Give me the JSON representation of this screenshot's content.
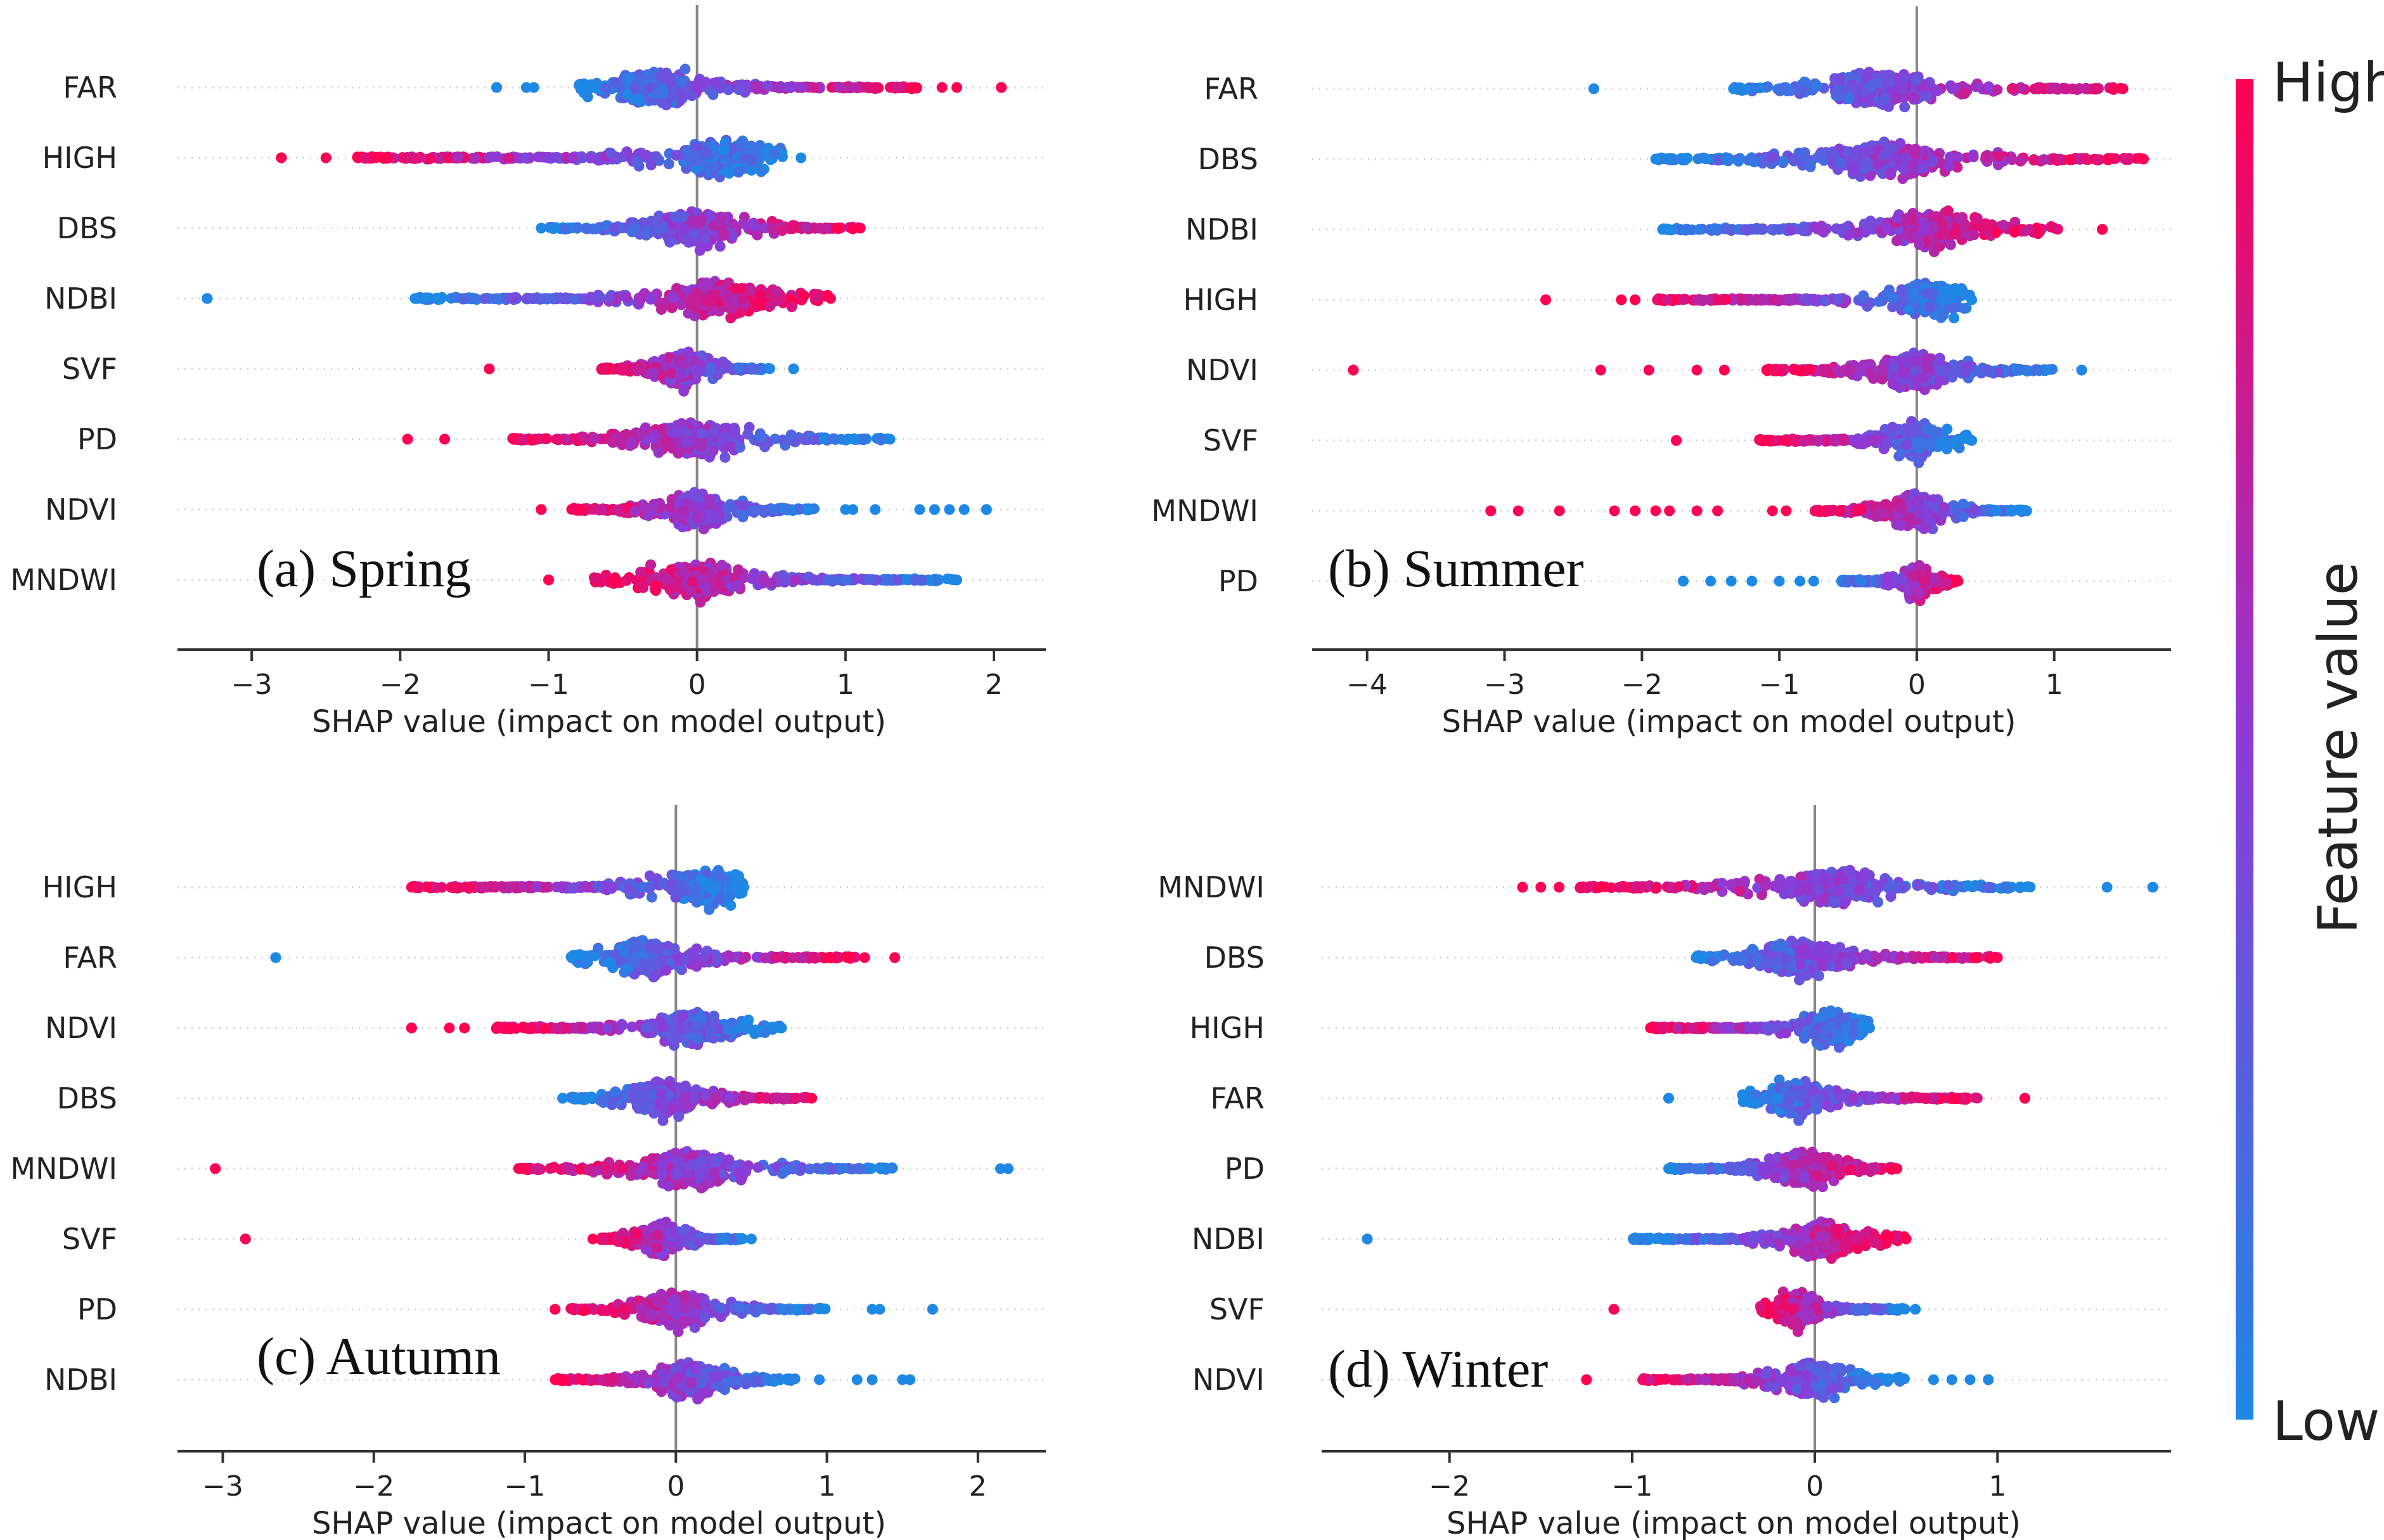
{
  "figure": {
    "colorbar": {
      "high_label": "High",
      "low_label": "Low",
      "title": "Feature value",
      "colors": {
        "high": "#ff0052",
        "mid": "#8c3bd9",
        "low": "#1e88e5"
      }
    }
  },
  "chart_data": [
    {
      "type": "scatter",
      "subtype": "shap-beeswarm",
      "panel_label": "(a) Spring",
      "xlabel": "SHAP value (impact on model output)",
      "xticks": [
        -3,
        -2,
        -1,
        0,
        1,
        2
      ],
      "xtick_labels": [
        "−3",
        "−2",
        "−1",
        "0",
        "1",
        "2"
      ],
      "xlim": [
        -3.5,
        2.35
      ],
      "features": [
        {
          "name": "FAR",
          "min": -1.35,
          "max": 2.05,
          "body": [
            -0.8,
            1.5
          ],
          "center": -0.3,
          "low_side": "left",
          "outliers_low": [
            -1.35,
            -1.15,
            -1.1
          ],
          "outliers_high": [
            1.65,
            1.75,
            2.05
          ]
        },
        {
          "name": "HIGH",
          "min": -2.8,
          "max": 0.7,
          "body": [
            -2.3,
            0.6
          ],
          "center": 0.2,
          "low_side": "right",
          "outliers_low": [
            -2.8,
            -2.5
          ],
          "outliers_high": []
        },
        {
          "name": "DBS",
          "min": -1.05,
          "max": 1.1,
          "body": [
            -1.0,
            1.1
          ],
          "center": 0.0,
          "low_side": "left",
          "outliers_low": [],
          "outliers_high": []
        },
        {
          "name": "NDBI",
          "min": -3.3,
          "max": 0.9,
          "body": [
            -1.9,
            0.9
          ],
          "center": 0.15,
          "low_side": "left",
          "outliers_low": [
            -3.3,
            -1.9
          ],
          "outliers_high": []
        },
        {
          "name": "SVF",
          "min": -1.4,
          "max": 0.65,
          "body": [
            -0.65,
            0.5
          ],
          "center": -0.1,
          "low_side": "right",
          "outliers_low": [
            -1.4
          ],
          "outliers_high": [
            0.65
          ]
        },
        {
          "name": "PD",
          "min": -1.95,
          "max": 1.3,
          "body": [
            -1.25,
            1.3
          ],
          "center": 0.0,
          "low_side": "right",
          "outliers_low": [
            -1.95,
            -1.7
          ],
          "outliers_high": []
        },
        {
          "name": "NDVI",
          "min": -1.05,
          "max": 1.95,
          "body": [
            -0.85,
            0.8
          ],
          "center": 0.0,
          "low_side": "right",
          "outliers_low": [
            -1.05
          ],
          "outliers_high": [
            1.0,
            1.05,
            1.2,
            1.5,
            1.6,
            1.7,
            1.8,
            1.95
          ]
        },
        {
          "name": "MNDWI",
          "min": -1.0,
          "max": 1.75,
          "body": [
            -0.7,
            1.75
          ],
          "center": 0.0,
          "low_side": "right",
          "outliers_low": [
            -1.0
          ],
          "outliers_high": []
        }
      ]
    },
    {
      "type": "scatter",
      "subtype": "shap-beeswarm",
      "panel_label": "(b) Summer",
      "xlabel": "SHAP value (impact on model output)",
      "xticks": [
        -4,
        -3,
        -2,
        -1,
        0,
        1
      ],
      "xtick_labels": [
        "−4",
        "−3",
        "−2",
        "−1",
        "0",
        "1"
      ],
      "xlim": [
        -4.4,
        1.85
      ],
      "features": [
        {
          "name": "FAR",
          "min": -2.35,
          "max": 1.5,
          "body": [
            -1.35,
            1.5
          ],
          "center": -0.3,
          "low_side": "left",
          "outliers_low": [
            -2.35
          ],
          "outliers_high": []
        },
        {
          "name": "DBS",
          "min": -1.9,
          "max": 1.65,
          "body": [
            -1.9,
            1.65
          ],
          "center": -0.2,
          "low_side": "left",
          "outliers_low": [],
          "outliers_high": []
        },
        {
          "name": "NDBI",
          "min": -1.85,
          "max": 1.35,
          "body": [
            -1.85,
            1.05
          ],
          "center": 0.1,
          "low_side": "left",
          "outliers_low": [],
          "outliers_high": [
            1.35
          ]
        },
        {
          "name": "HIGH",
          "min": -2.7,
          "max": 0.4,
          "body": [
            -1.9,
            0.4
          ],
          "center": 0.1,
          "low_side": "right",
          "outliers_low": [
            -2.7,
            -2.15,
            -2.05
          ],
          "outliers_high": []
        },
        {
          "name": "NDVI",
          "min": -4.1,
          "max": 1.2,
          "body": [
            -1.1,
            1.0
          ],
          "center": 0.0,
          "low_side": "right",
          "outliers_low": [
            -4.1,
            -2.3,
            -1.95,
            -1.6,
            -1.4
          ],
          "outliers_high": [
            1.2
          ]
        },
        {
          "name": "SVF",
          "min": -1.75,
          "max": 0.4,
          "body": [
            -1.15,
            0.4
          ],
          "center": 0.0,
          "low_side": "right",
          "outliers_low": [
            -1.75
          ],
          "outliers_high": []
        },
        {
          "name": "MNDWI",
          "min": -3.1,
          "max": 0.8,
          "body": [
            -0.75,
            0.8
          ],
          "center": 0.0,
          "low_side": "right",
          "outliers_low": [
            -3.1,
            -2.9,
            -2.6,
            -2.2,
            -2.05,
            -1.9,
            -1.8,
            -1.6,
            -1.45,
            -1.05,
            -0.95
          ],
          "outliers_high": []
        },
        {
          "name": "PD",
          "min": -1.7,
          "max": 0.3,
          "body": [
            -0.55,
            0.3
          ],
          "center": 0.0,
          "low_side": "left",
          "outliers_low": [
            -1.7,
            -1.5,
            -1.35,
            -1.2,
            -1.0,
            -0.85,
            -0.75
          ],
          "outliers_high": []
        }
      ]
    },
    {
      "type": "scatter",
      "subtype": "shap-beeswarm",
      "panel_label": "(c) Autumn",
      "xlabel": "SHAP value (impact on model output)",
      "xticks": [
        -3,
        -2,
        -1,
        0,
        1,
        2
      ],
      "xtick_labels": [
        "−3",
        "−2",
        "−1",
        "0",
        "1",
        "2"
      ],
      "xlim": [
        -3.3,
        2.45
      ],
      "features": [
        {
          "name": "HIGH",
          "min": -1.75,
          "max": 0.45,
          "body": [
            -1.75,
            0.45
          ],
          "center": 0.2,
          "low_side": "right",
          "outliers_low": [],
          "outliers_high": []
        },
        {
          "name": "FAR",
          "min": -2.65,
          "max": 1.45,
          "body": [
            -0.7,
            1.2
          ],
          "center": -0.2,
          "low_side": "left",
          "outliers_low": [
            -2.65
          ],
          "outliers_high": [
            1.25,
            1.45
          ]
        },
        {
          "name": "NDVI",
          "min": -1.75,
          "max": 0.7,
          "body": [
            -1.2,
            0.7
          ],
          "center": 0.1,
          "low_side": "right",
          "outliers_low": [
            -1.75,
            -1.5,
            -1.4
          ],
          "outliers_high": []
        },
        {
          "name": "DBS",
          "min": -0.75,
          "max": 0.9,
          "body": [
            -0.7,
            0.9
          ],
          "center": -0.1,
          "low_side": "left",
          "outliers_low": [
            -0.75
          ],
          "outliers_high": []
        },
        {
          "name": "MNDWI",
          "min": -3.05,
          "max": 2.2,
          "body": [
            -1.05,
            1.45
          ],
          "center": 0.1,
          "low_side": "right",
          "outliers_low": [
            -3.05
          ],
          "outliers_high": [
            2.15,
            2.2
          ]
        },
        {
          "name": "SVF",
          "min": -2.85,
          "max": 0.5,
          "body": [
            -0.5,
            0.45
          ],
          "center": -0.1,
          "low_side": "right",
          "outliers_low": [
            -2.85,
            -0.55
          ],
          "outliers_high": []
        },
        {
          "name": "PD",
          "min": -0.8,
          "max": 1.7,
          "body": [
            -0.7,
            1.0
          ],
          "center": 0.0,
          "low_side": "right",
          "outliers_low": [
            -0.8
          ],
          "outliers_high": [
            1.3,
            1.35,
            1.7
          ]
        },
        {
          "name": "NDBI",
          "min": -0.8,
          "max": 1.55,
          "body": [
            -0.8,
            0.8
          ],
          "center": 0.1,
          "low_side": "right",
          "outliers_low": [],
          "outliers_high": [
            0.95,
            1.2,
            1.3,
            1.5,
            1.55
          ]
        }
      ]
    },
    {
      "type": "scatter",
      "subtype": "shap-beeswarm",
      "panel_label": "(d) Winter",
      "xlabel": "SHAP value (impact on model output)",
      "xticks": [
        -2,
        -1,
        0,
        1
      ],
      "xtick_labels": [
        "−2",
        "−1",
        "0",
        "1"
      ],
      "xlim": [
        -2.7,
        1.95
      ],
      "features": [
        {
          "name": "MNDWI",
          "min": -1.6,
          "max": 1.85,
          "body": [
            -1.3,
            1.2
          ],
          "center": 0.1,
          "low_side": "right",
          "outliers_low": [
            -1.6,
            -1.5,
            -1.4
          ],
          "outliers_high": [
            1.6,
            1.85
          ]
        },
        {
          "name": "DBS",
          "min": -0.65,
          "max": 1.0,
          "body": [
            -0.65,
            1.0
          ],
          "center": -0.1,
          "low_side": "left",
          "outliers_low": [],
          "outliers_high": []
        },
        {
          "name": "HIGH",
          "min": -0.9,
          "max": 0.3,
          "body": [
            -0.9,
            0.3
          ],
          "center": 0.1,
          "low_side": "right",
          "outliers_low": [],
          "outliers_high": []
        },
        {
          "name": "FAR",
          "min": -0.8,
          "max": 1.15,
          "body": [
            -0.4,
            0.9
          ],
          "center": -0.1,
          "low_side": "left",
          "outliers_low": [
            -0.8
          ],
          "outliers_high": [
            1.15
          ]
        },
        {
          "name": "PD",
          "min": -0.8,
          "max": 0.45,
          "body": [
            -0.8,
            0.45
          ],
          "center": -0.05,
          "low_side": "left",
          "outliers_low": [],
          "outliers_high": []
        },
        {
          "name": "NDBI",
          "min": -2.45,
          "max": 0.5,
          "body": [
            -1.0,
            0.5
          ],
          "center": 0.05,
          "low_side": "left",
          "outliers_low": [
            -2.45
          ],
          "outliers_high": []
        },
        {
          "name": "SVF",
          "min": -1.1,
          "max": 0.55,
          "body": [
            -0.3,
            0.5
          ],
          "center": -0.1,
          "low_side": "right",
          "outliers_low": [
            -1.1
          ],
          "outliers_high": []
        },
        {
          "name": "NDVI",
          "min": -1.25,
          "max": 0.95,
          "body": [
            -0.95,
            0.5
          ],
          "center": 0.0,
          "low_side": "right",
          "outliers_low": [
            -1.25
          ],
          "outliers_high": [
            0.65,
            0.75,
            0.85,
            0.95
          ]
        }
      ]
    }
  ]
}
